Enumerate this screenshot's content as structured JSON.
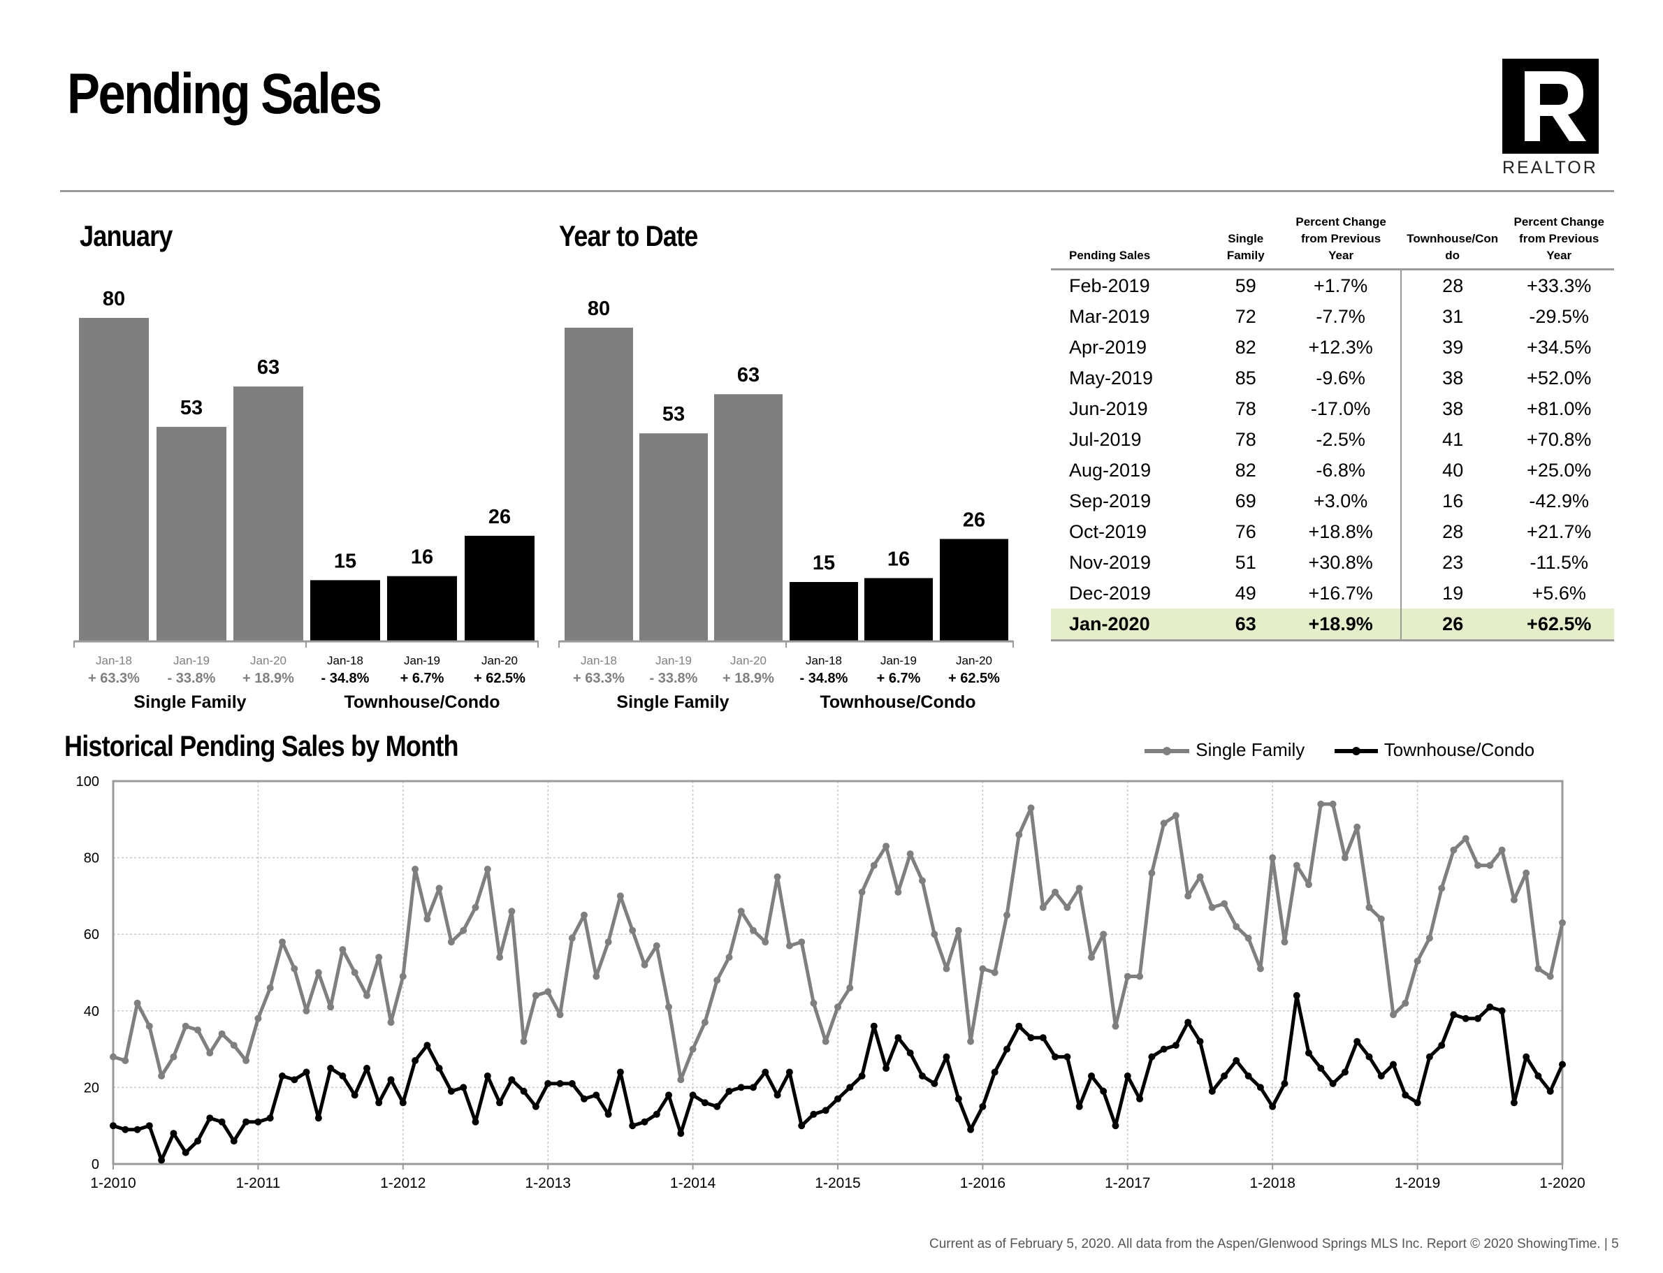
{
  "title": "Pending Sales",
  "logo": {
    "text": "REALTOR",
    "mark": "R"
  },
  "colors": {
    "single_family": "#7f7f7f",
    "townhouse": "#000000",
    "highlight": "#e4eec9"
  },
  "january_chart": {
    "heading": "January",
    "groups": [
      "Single Family",
      "Townhouse/Condo"
    ]
  },
  "ytd_chart": {
    "heading": "Year to Date",
    "groups": [
      "Single Family",
      "Townhouse/Condo"
    ]
  },
  "historical": {
    "heading": "Historical Pending Sales by Month"
  },
  "table": {
    "headers": [
      "Pending Sales",
      "Single\nFamily",
      "Percent Change\nfrom Previous\nYear",
      "Townhouse/Con\ndo",
      "Percent Change\nfrom Previous\nYear"
    ],
    "rows": [
      [
        "Feb-2019",
        "59",
        "+1.7%",
        "28",
        "+33.3%"
      ],
      [
        "Mar-2019",
        "72",
        "-7.7%",
        "31",
        "-29.5%"
      ],
      [
        "Apr-2019",
        "82",
        "+12.3%",
        "39",
        "+34.5%"
      ],
      [
        "May-2019",
        "85",
        "-9.6%",
        "38",
        "+52.0%"
      ],
      [
        "Jun-2019",
        "78",
        "-17.0%",
        "38",
        "+81.0%"
      ],
      [
        "Jul-2019",
        "78",
        "-2.5%",
        "41",
        "+70.8%"
      ],
      [
        "Aug-2019",
        "82",
        "-6.8%",
        "40",
        "+25.0%"
      ],
      [
        "Sep-2019",
        "69",
        "+3.0%",
        "16",
        "-42.9%"
      ],
      [
        "Oct-2019",
        "76",
        "+18.8%",
        "28",
        "+21.7%"
      ],
      [
        "Nov-2019",
        "51",
        "+30.8%",
        "23",
        "-11.5%"
      ],
      [
        "Dec-2019",
        "49",
        "+16.7%",
        "19",
        "+5.6%"
      ],
      [
        "Jan-2020",
        "63",
        "+18.9%",
        "26",
        "+62.5%"
      ]
    ]
  },
  "footer": "Current as of February 5, 2020.  All data from the Aspen/Glenwood Springs MLS Inc. Report © 2020 ShowingTime.  |  5",
  "chart_data": [
    {
      "type": "bar",
      "title": "January",
      "categories": [
        "Jan-18",
        "Jan-19",
        "Jan-20",
        "Jan-18",
        "Jan-19",
        "Jan-20"
      ],
      "groups": [
        "Single Family",
        "Single Family",
        "Single Family",
        "Townhouse/Condo",
        "Townhouse/Condo",
        "Townhouse/Condo"
      ],
      "values": [
        80,
        53,
        63,
        15,
        16,
        26
      ],
      "changes": [
        "+ 63.3%",
        "- 33.8%",
        "+ 18.9%",
        "- 34.8%",
        "+ 6.7%",
        "+ 62.5%"
      ],
      "ylim": [
        0,
        80
      ]
    },
    {
      "type": "bar",
      "title": "Year to Date",
      "categories": [
        "Jan-18",
        "Jan-19",
        "Jan-20",
        "Jan-18",
        "Jan-19",
        "Jan-20"
      ],
      "groups": [
        "Single Family",
        "Single Family",
        "Single Family",
        "Townhouse/Condo",
        "Townhouse/Condo",
        "Townhouse/Condo"
      ],
      "values": [
        80,
        53,
        63,
        15,
        16,
        26
      ],
      "changes": [
        "+ 63.3%",
        "- 33.8%",
        "+ 18.9%",
        "- 34.8%",
        "+ 6.7%",
        "+ 62.5%"
      ],
      "ylim": [
        0,
        80
      ]
    },
    {
      "type": "line",
      "title": "Historical Pending Sales by Month",
      "x_start": "1-2010",
      "x_end": "1-2020",
      "x_ticks": [
        "1-2010",
        "1-2011",
        "1-2012",
        "1-2013",
        "1-2014",
        "1-2015",
        "1-2016",
        "1-2017",
        "1-2018",
        "1-2019",
        "1-2020"
      ],
      "ylim": [
        0,
        100
      ],
      "y_ticks": [
        0,
        20,
        40,
        60,
        80,
        100
      ],
      "grid": true,
      "legend": "top-right",
      "series": [
        {
          "name": "Single Family",
          "values": [
            28,
            27,
            42,
            36,
            23,
            28,
            36,
            35,
            29,
            34,
            31,
            27,
            38,
            46,
            58,
            51,
            40,
            50,
            41,
            56,
            50,
            44,
            54,
            37,
            49,
            77,
            64,
            72,
            58,
            61,
            67,
            77,
            54,
            66,
            32,
            44,
            45,
            39,
            59,
            65,
            49,
            58,
            70,
            61,
            52,
            57,
            41,
            22,
            30,
            37,
            48,
            54,
            66,
            61,
            58,
            75,
            57,
            58,
            42,
            32,
            41,
            46,
            71,
            78,
            83,
            71,
            81,
            74,
            60,
            51,
            61,
            32,
            51,
            50,
            65,
            86,
            93,
            67,
            71,
            67,
            72,
            54,
            60,
            36,
            49,
            49,
            76,
            89,
            91,
            70,
            75,
            67,
            68,
            62,
            59,
            51,
            80,
            58,
            78,
            73,
            94,
            94,
            80,
            88,
            67,
            64,
            39,
            42,
            53,
            59,
            72,
            82,
            85,
            78,
            78,
            82,
            69,
            76,
            51,
            49,
            63
          ]
        },
        {
          "name": "Townhouse/Condo",
          "values": [
            10,
            9,
            9,
            10,
            1,
            8,
            3,
            6,
            12,
            11,
            6,
            11,
            11,
            12,
            23,
            22,
            24,
            12,
            25,
            23,
            18,
            25,
            16,
            22,
            16,
            27,
            31,
            25,
            19,
            20,
            11,
            23,
            16,
            22,
            19,
            15,
            21,
            21,
            21,
            17,
            18,
            13,
            24,
            10,
            11,
            13,
            18,
            8,
            18,
            16,
            15,
            19,
            20,
            20,
            24,
            18,
            24,
            10,
            13,
            14,
            17,
            20,
            23,
            36,
            25,
            33,
            29,
            23,
            21,
            28,
            17,
            9,
            15,
            24,
            30,
            36,
            33,
            33,
            28,
            28,
            15,
            23,
            19,
            10,
            23,
            17,
            28,
            30,
            31,
            37,
            32,
            19,
            23,
            27,
            23,
            20,
            15,
            21,
            44,
            29,
            25,
            21,
            24,
            32,
            28,
            23,
            26,
            18,
            16,
            28,
            31,
            39,
            38,
            38,
            41,
            40,
            16,
            28,
            23,
            19,
            26
          ]
        }
      ]
    }
  ]
}
